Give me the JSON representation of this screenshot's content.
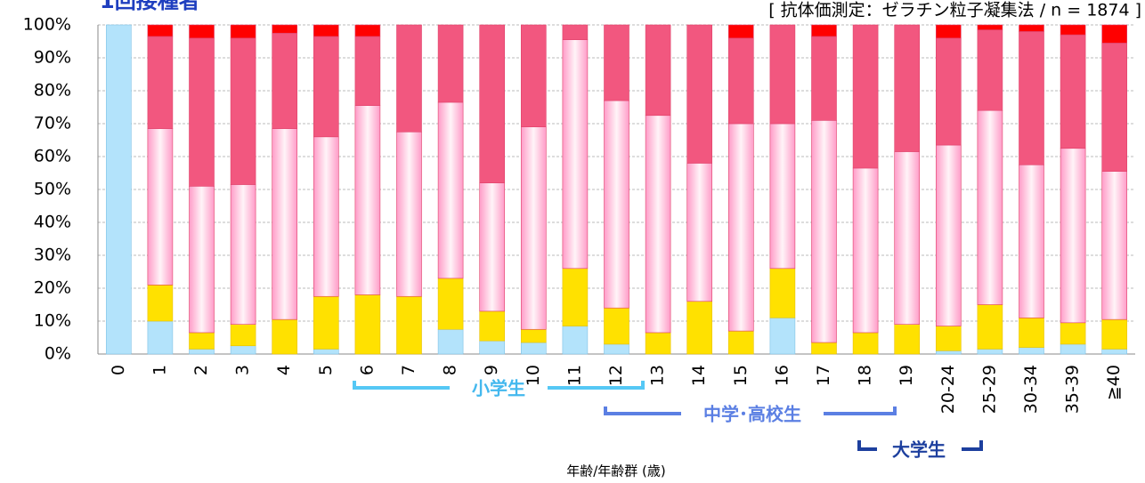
{
  "chart_data": {
    "type": "stacked_bar",
    "title": "1回接種者",
    "subtitle": "[ 抗体価測定：ゼラチン粒子凝集法 / n = 1874 ]",
    "x_label": "年齢/年齢群 (歳)",
    "annotations": [
      "小学生",
      "中学･高校生",
      "大学生"
    ],
    "categories": [
      "0",
      "1",
      "2",
      "3",
      "4",
      "5",
      "6",
      "7",
      "8",
      "9",
      "10",
      "11",
      "12",
      "13",
      "14",
      "15",
      "16",
      "17",
      "18",
      "19",
      "20-24",
      "25-29",
      "30-34",
      "35-39",
      "≧40"
    ],
    "series": [
      {
        "color": "#b3e3fb",
        "values": [
          100,
          10,
          1.5,
          2.5,
          0,
          1.5,
          0,
          0,
          7.5,
          4,
          3.5,
          8.5,
          3,
          0,
          0,
          0,
          11,
          0,
          0,
          0,
          1,
          1.5,
          2,
          3,
          1.5
        ]
      },
      {
        "color": "#ffe100",
        "values": [
          0,
          11,
          5,
          6.5,
          10.5,
          16,
          18,
          17.5,
          15.5,
          9,
          4,
          17.5,
          11,
          6.5,
          16,
          7,
          15,
          3.5,
          6.5,
          9,
          7.5,
          13.5,
          9,
          6.5,
          9
        ]
      },
      {
        "color": "#ffc4de",
        "values": [
          0,
          47.5,
          44.5,
          42.5,
          58,
          48.5,
          57.5,
          50,
          53.5,
          39,
          61.5,
          69.5,
          63,
          66,
          42,
          63,
          44,
          67.5,
          50,
          52.5,
          55,
          59,
          46.5,
          53,
          45
        ]
      },
      {
        "color": "#f2577f",
        "values": [
          0,
          28,
          45,
          44.5,
          29,
          30.5,
          21,
          32.5,
          23.5,
          48,
          31,
          4.5,
          23,
          27.5,
          42,
          26,
          30,
          25.5,
          43.5,
          38.5,
          32.5,
          24.5,
          40.5,
          34.5,
          39
        ]
      },
      {
        "color": "#ff0000",
        "values": [
          0,
          3.5,
          4,
          4,
          2.5,
          3.5,
          3.5,
          0,
          0,
          0,
          0,
          0,
          0,
          0,
          0,
          4,
          0,
          3.5,
          0,
          0,
          4,
          1.5,
          2,
          3,
          5.5
        ]
      }
    ],
    "ylim": [
      0,
      100
    ],
    "yticks": [
      {
        "value": 0,
        "label": "0%"
      },
      {
        "value": 10,
        "label": "10%"
      },
      {
        "value": 20,
        "label": "20%"
      },
      {
        "value": 30,
        "label": "30%"
      },
      {
        "value": 40,
        "label": "40%"
      },
      {
        "value": 50,
        "label": "50%"
      },
      {
        "value": 60,
        "label": "60%"
      },
      {
        "value": 70,
        "label": "70%"
      },
      {
        "value": 80,
        "label": "80%"
      },
      {
        "value": 90,
        "label": "90%"
      },
      {
        "value": 100,
        "label": "100%"
      }
    ],
    "grid": true
  }
}
